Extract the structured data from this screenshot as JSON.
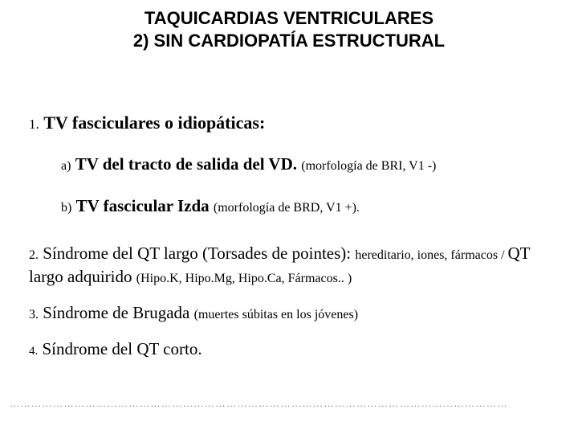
{
  "colors": {
    "background": "#ffffff",
    "text": "#000000",
    "dots": "#6b7070"
  },
  "fonts": {
    "title_family": "Arial, Helvetica, sans-serif",
    "body_family": "Georgia, 'Times New Roman', serif",
    "title_size_pt": 22,
    "body_size_pt": 21,
    "small_size_pt": 16
  },
  "title": {
    "line1": "TAQUICARDIAS VENTRICULARES",
    "line2": "2) SIN CARDIOPATÍA ESTRUCTURAL"
  },
  "item1": {
    "num": "1.",
    "text_bold": "TV fasciculares o idiopáticas:"
  },
  "sub_a": {
    "lbl": "a)",
    "text_bold": "TV del tracto de salida del VD. ",
    "paren": "(morfología de BRI, V1 -)"
  },
  "sub_b": {
    "lbl": "b)",
    "text_bold": "TV fascicular Izda ",
    "paren": "(morfología de BRD, V1 +)."
  },
  "item2": {
    "num": "2.",
    "text_main": "Síndrome del QT largo (Torsades de pointes): ",
    "trail1": "hereditario, iones, fármacos / ",
    "mid": "QT largo adquirido ",
    "paren2": "(Hipo.K, Hipo.Mg, Hipo.Ca, Fármacos.. )"
  },
  "item3": {
    "num": "3.",
    "text_main": "Síndrome de Brugada ",
    "paren": "(muertes súbitas en los jóvenes)"
  },
  "item4": {
    "num": "4.",
    "text_main": "Síndrome del QT corto."
  },
  "dots": "…………………………………………………………………………………………………………………………"
}
